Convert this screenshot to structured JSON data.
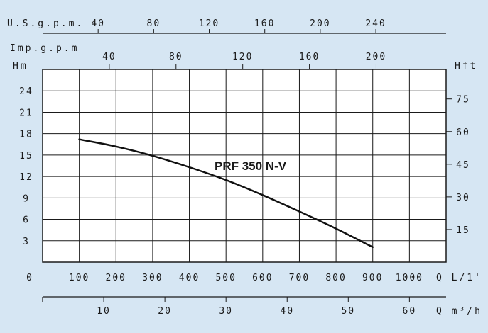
{
  "chart_data": {
    "type": "line",
    "title": "",
    "background": "#d6e6f3",
    "plot_background": "#ffffff",
    "line_color": "#111111",
    "grid": true,
    "x_primary": {
      "label": "Q L/1'",
      "range": [
        0,
        1100
      ],
      "ticks": [
        100,
        200,
        300,
        400,
        500,
        600,
        700,
        800,
        900,
        1000
      ],
      "zero_label": "0"
    },
    "x_m3h": {
      "label": "Q m³/h",
      "ticks": [
        10,
        20,
        30,
        40,
        50,
        60
      ]
    },
    "x_usgpm": {
      "label": "U.S.g.p.m.",
      "ticks": [
        40,
        80,
        120,
        160,
        200,
        240
      ]
    },
    "x_impgpm": {
      "label": "Imp.g.p.m",
      "ticks": [
        40,
        80,
        120,
        160,
        200
      ]
    },
    "y_left": {
      "label": "Hm",
      "range": [
        0,
        27
      ],
      "ticks": [
        3,
        6,
        9,
        12,
        15,
        18,
        21,
        24
      ]
    },
    "y_right": {
      "label": "Hft",
      "ticks": [
        15,
        30,
        45,
        60,
        75
      ]
    },
    "series": [
      {
        "name": "PRF 350 N-V",
        "x": [
          100,
          200,
          300,
          400,
          500,
          600,
          700,
          800,
          900
        ],
        "y": [
          17.2,
          16.2,
          14.9,
          13.3,
          11.5,
          9.4,
          7.1,
          4.7,
          2.1
        ]
      }
    ]
  }
}
